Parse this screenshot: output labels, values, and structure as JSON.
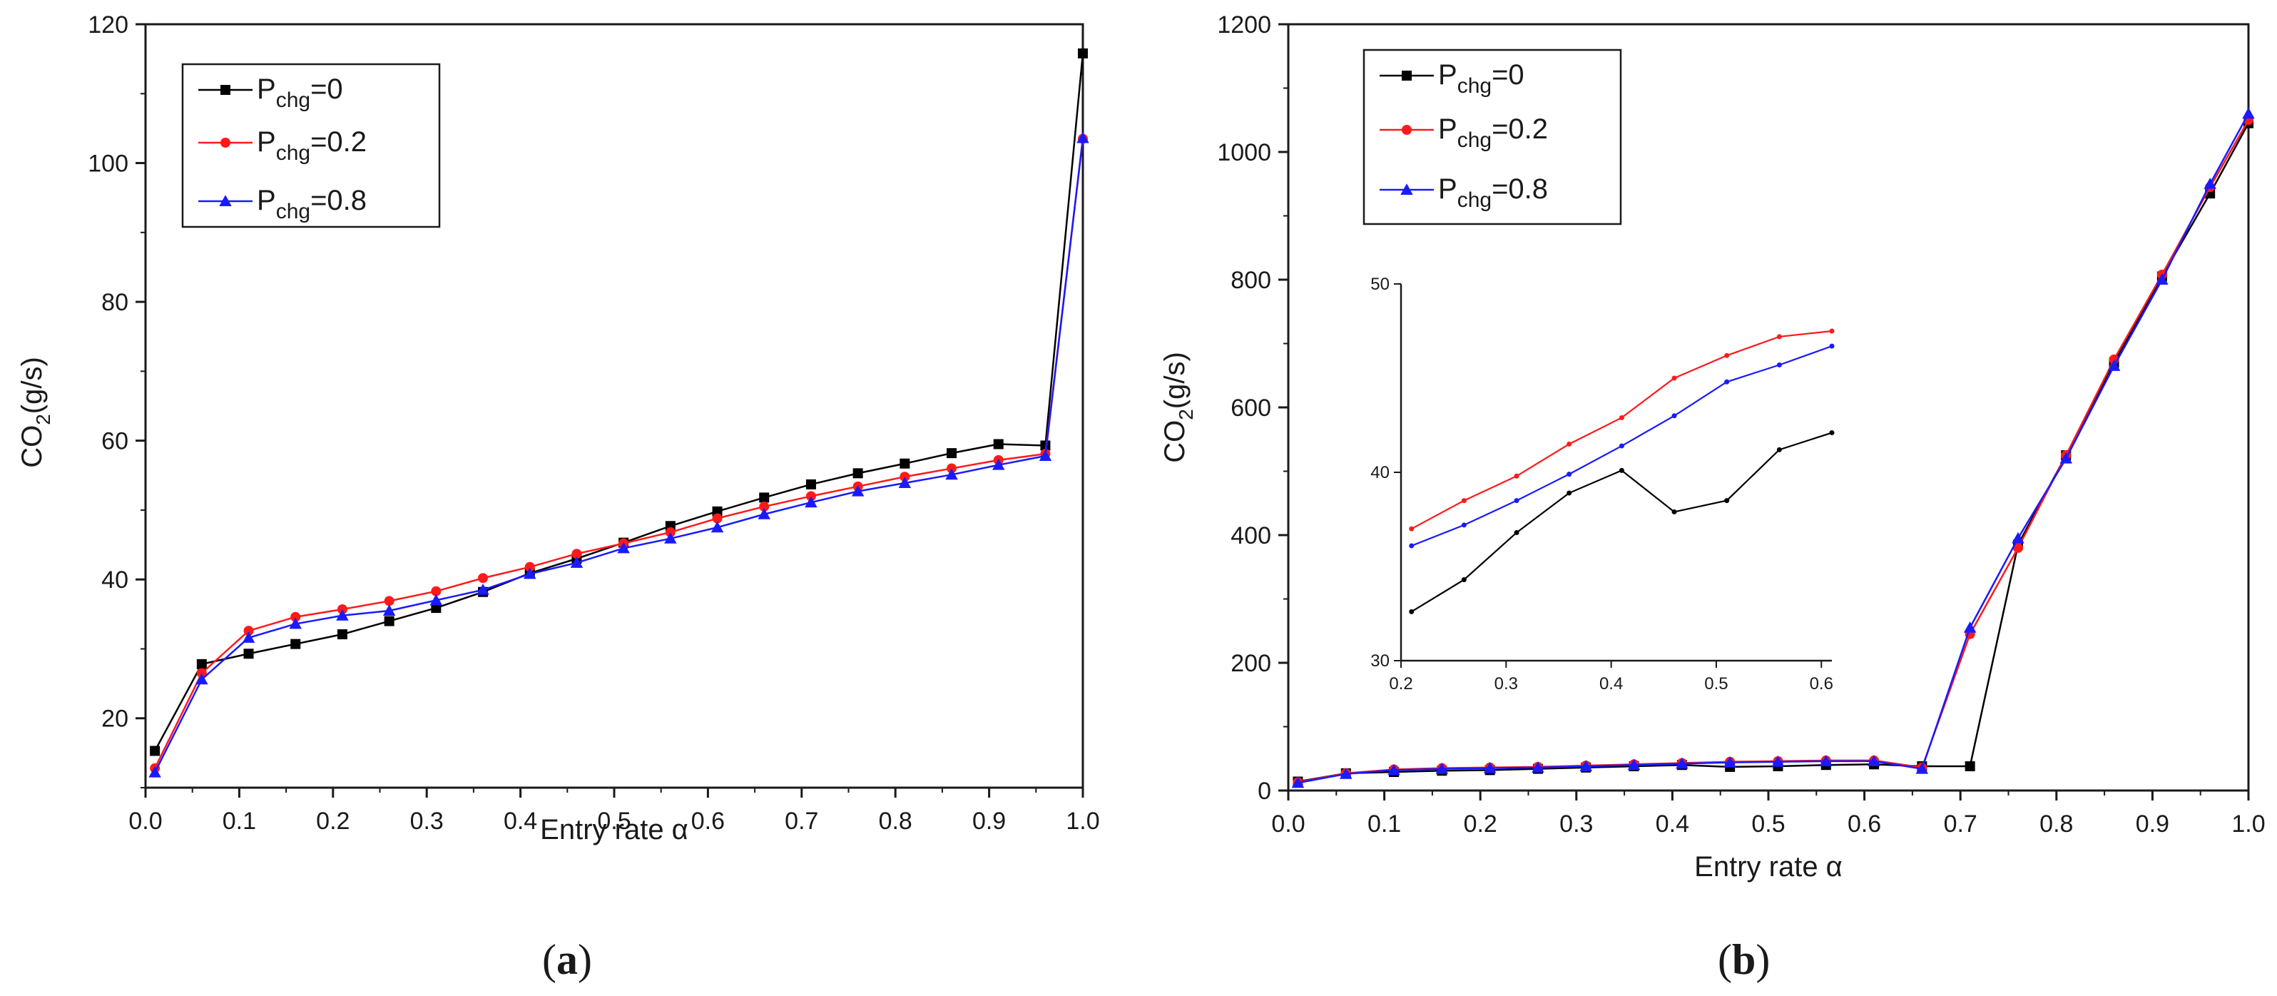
{
  "colors": {
    "s0": "#000000",
    "s1": "#ff1a1a",
    "s2": "#1a1aff",
    "axis": "#1a1a1a"
  },
  "chart_data": [
    {
      "type": "line",
      "panel_label": "(a)",
      "panel_letter": "a",
      "xlabel": "Entry rate α",
      "ylabel": "CO₂(g/s)",
      "ylabel_main": "CO",
      "ylabel_sub": "2",
      "ylabel_tail": "(g/s)",
      "xlim": [
        0.0,
        1.0
      ],
      "ylim": [
        10,
        120
      ],
      "x_ticks": [
        0.0,
        0.1,
        0.2,
        0.3,
        0.4,
        0.5,
        0.6,
        0.7,
        0.8,
        0.9,
        1.0
      ],
      "x_tick_labels": [
        "0.0",
        "0.1",
        "0.2",
        "0.3",
        "0.4",
        "0.5",
        "0.6",
        "0.7",
        "0.8",
        "0.9",
        "1.0"
      ],
      "y_ticks": [
        20,
        40,
        60,
        80,
        100,
        120
      ],
      "y_tick_labels": [
        "20",
        "40",
        "60",
        "80",
        "100",
        "120"
      ],
      "legend_position": "top-left",
      "x": [
        0.01,
        0.06,
        0.11,
        0.16,
        0.21,
        0.26,
        0.31,
        0.36,
        0.41,
        0.46,
        0.51,
        0.56,
        0.61,
        0.66,
        0.71,
        0.76,
        0.81,
        0.86,
        0.91,
        0.96,
        1.0
      ],
      "series": [
        {
          "name": "Pchg=0",
          "legend_main": "P",
          "legend_sub": "chg",
          "legend_tail": "=0",
          "marker": "square",
          "values": [
            15.3,
            27.8,
            29.3,
            30.7,
            32.1,
            34.0,
            35.9,
            38.2,
            40.9,
            43.0,
            45.3,
            47.7,
            49.8,
            51.8,
            53.7,
            55.3,
            56.7,
            58.2,
            59.5,
            59.3,
            115.8
          ]
        },
        {
          "name": "Pchg=0.2",
          "legend_main": "P",
          "legend_sub": "chg",
          "legend_tail": "=0.2",
          "marker": "circle",
          "values": [
            12.8,
            26.5,
            32.6,
            34.6,
            35.7,
            36.9,
            38.3,
            40.2,
            41.8,
            43.7,
            45.2,
            46.8,
            48.8,
            50.5,
            52.0,
            53.4,
            54.8,
            56.0,
            57.2,
            58.1,
            103.5
          ]
        },
        {
          "name": "Pchg=0.8",
          "legend_main": "P",
          "legend_sub": "chg",
          "legend_tail": "=0.8",
          "marker": "triangle",
          "values": [
            12.2,
            25.6,
            31.6,
            33.6,
            34.8,
            35.5,
            37.0,
            38.5,
            40.8,
            42.4,
            44.5,
            45.9,
            47.5,
            49.4,
            51.1,
            52.7,
            53.9,
            55.1,
            56.5,
            57.8,
            103.6
          ]
        }
      ]
    },
    {
      "type": "line",
      "panel_label": "(b)",
      "panel_letter": "b",
      "xlabel": "Entry rate α",
      "ylabel": "CO₂(g/s)",
      "ylabel_main": "CO",
      "ylabel_sub": "2",
      "ylabel_tail": "(g/s)",
      "xlim": [
        0.0,
        1.0
      ],
      "ylim": [
        0,
        1200
      ],
      "x_ticks": [
        0.0,
        0.1,
        0.2,
        0.3,
        0.4,
        0.5,
        0.6,
        0.7,
        0.8,
        0.9,
        1.0
      ],
      "x_tick_labels": [
        "0.0",
        "0.1",
        "0.2",
        "0.3",
        "0.4",
        "0.5",
        "0.6",
        "0.7",
        "0.8",
        "0.9",
        "1.0"
      ],
      "y_ticks": [
        0,
        200,
        400,
        600,
        800,
        1000,
        1200
      ],
      "y_tick_labels": [
        "0",
        "200",
        "400",
        "600",
        "800",
        "1000",
        "1200"
      ],
      "legend_position": "top-left",
      "x": [
        0.01,
        0.06,
        0.11,
        0.16,
        0.21,
        0.26,
        0.31,
        0.36,
        0.41,
        0.46,
        0.51,
        0.56,
        0.61,
        0.66,
        0.71,
        0.76,
        0.81,
        0.86,
        0.91,
        0.96,
        1.0
      ],
      "series": [
        {
          "name": "Pchg=0",
          "legend_main": "P",
          "legend_sub": "chg",
          "legend_tail": "=0",
          "marker": "square",
          "values": [
            14,
            27,
            29,
            31,
            32,
            34,
            36,
            38,
            40,
            37,
            38,
            40,
            41,
            38,
            38,
            385,
            525,
            670,
            805,
            935,
            1045
          ]
        },
        {
          "name": "Pchg=0.2",
          "legend_main": "P",
          "legend_sub": "chg",
          "legend_tail": "=0.2",
          "marker": "circle",
          "values": [
            13,
            27,
            33,
            35,
            36,
            37,
            39,
            41,
            43,
            45,
            46,
            47,
            47,
            36,
            245,
            380,
            525,
            675,
            808,
            945,
            1050
          ]
        },
        {
          "name": "Pchg=0.8",
          "legend_main": "P",
          "legend_sub": "chg",
          "legend_tail": "=0.8",
          "marker": "triangle",
          "values": [
            12,
            26,
            32,
            34,
            35,
            36,
            38,
            40,
            42,
            44,
            45,
            46,
            46,
            34,
            255,
            395,
            520,
            665,
            800,
            950,
            1060
          ]
        }
      ],
      "inset": {
        "xlim": [
          0.2,
          0.61
        ],
        "ylim": [
          30,
          50
        ],
        "x_ticks": [
          0.2,
          0.3,
          0.4,
          0.5,
          0.6
        ],
        "x_tick_labels": [
          "0.2",
          "0.3",
          "0.4",
          "0.5",
          "0.6"
        ],
        "y_ticks": [
          30,
          40,
          50
        ],
        "y_tick_labels": [
          "30",
          "40",
          "50"
        ],
        "x": [
          0.21,
          0.26,
          0.31,
          0.36,
          0.41,
          0.46,
          0.51,
          0.56,
          0.61
        ],
        "series": [
          {
            "name": "Pchg=0",
            "values": [
              32.6,
              34.3,
              36.8,
              38.9,
              40.1,
              37.9,
              38.5,
              41.2,
              42.1
            ]
          },
          {
            "name": "Pchg=0.2",
            "values": [
              37.0,
              38.5,
              39.8,
              41.5,
              42.9,
              45.0,
              46.2,
              47.2,
              47.5
            ]
          },
          {
            "name": "Pchg=0.8",
            "values": [
              36.1,
              37.2,
              38.5,
              39.9,
              41.4,
              43.0,
              44.8,
              45.7,
              46.7
            ]
          }
        ]
      }
    }
  ]
}
